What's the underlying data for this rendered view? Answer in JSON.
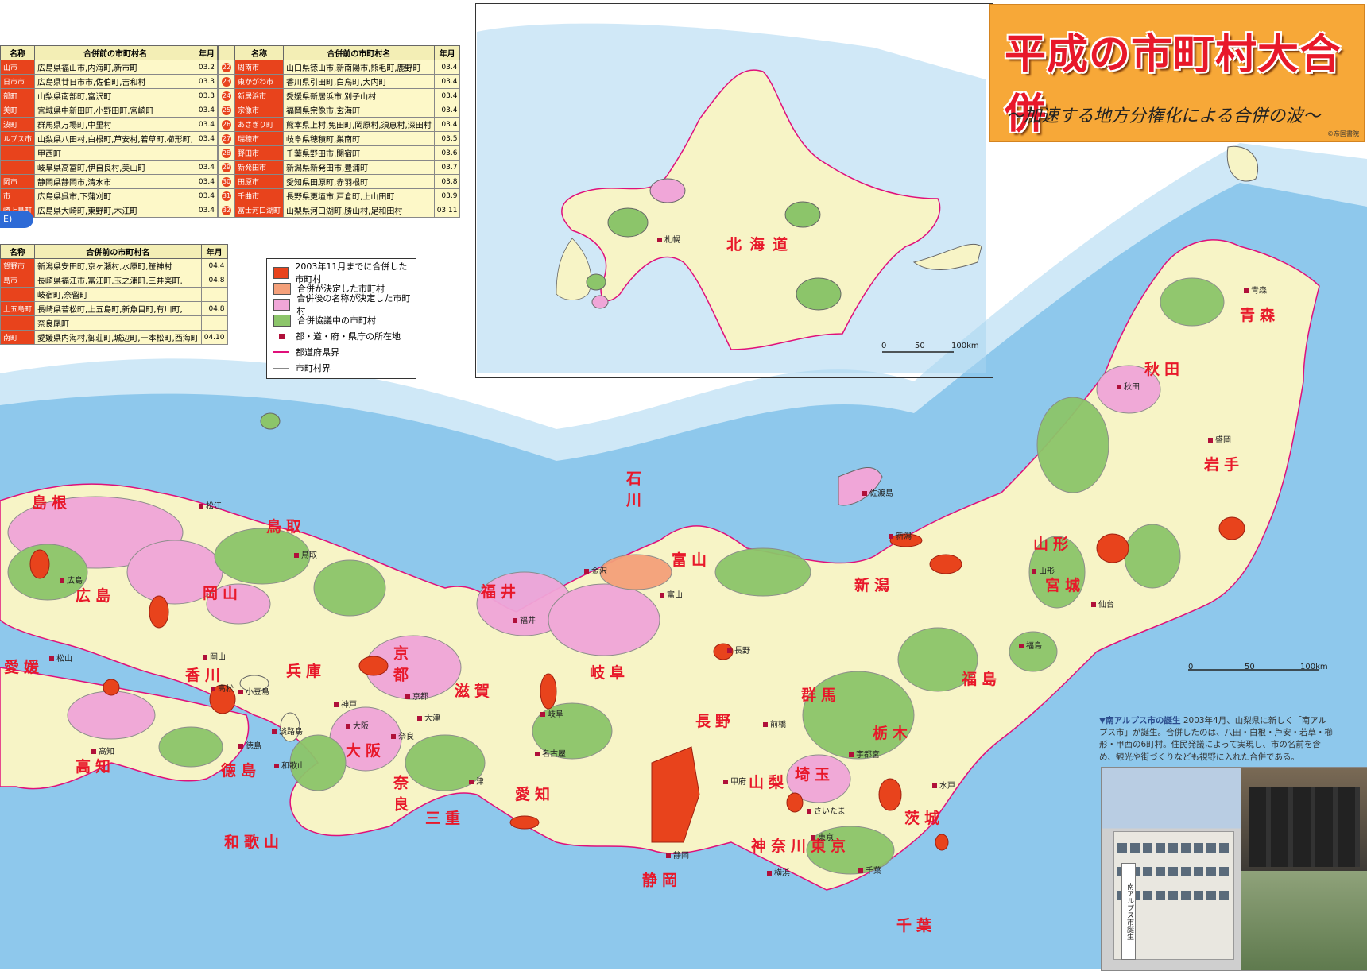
{
  "title": {
    "main": "平成の市町村大合併",
    "subtitle": "〜加速する地方分権化による合併の波〜",
    "publisher": "©帝国書院"
  },
  "table1": {
    "headers": [
      "名称",
      "合併前の市町村名",
      "年月"
    ],
    "left_rows": [
      {
        "name": "山市",
        "before": "広島県福山市,内海町,新市町",
        "ym": "03.2"
      },
      {
        "name": "日市市",
        "before": "広島県廿日市市,佐伯町,吉和村",
        "ym": "03.3"
      },
      {
        "name": "部町",
        "before": "山梨県南部町,富沢町",
        "ym": "03.3"
      },
      {
        "name": "美町",
        "before": "宮城県中新田町,小野田町,宮崎町",
        "ym": "03.4"
      },
      {
        "name": "波町",
        "before": "群馬県万場町,中里村",
        "ym": "03.4"
      },
      {
        "name": "ルプス市",
        "before": "山梨県八田村,白根町,芦安村,若草町,櫛形町,",
        "ym": "03.4"
      },
      {
        "name": "",
        "before": "甲西町",
        "ym": ""
      },
      {
        "name": "",
        "before": "岐阜県高富町,伊自良村,美山町",
        "ym": "03.4"
      },
      {
        "name": "岡市",
        "before": "静岡県静岡市,清水市",
        "ym": "03.4"
      },
      {
        "name": "市",
        "before": "広島県呉市,下蒲刈町",
        "ym": "03.4"
      },
      {
        "name": "崎上島町",
        "before": "広島県大崎町,東野町,木江町",
        "ym": "03.4"
      }
    ],
    "right_rows": [
      {
        "num": "22",
        "name": "周南市",
        "before": "山口県徳山市,新南陽市,熊毛町,鹿野町",
        "ym": "03.4"
      },
      {
        "num": "23",
        "name": "東かがわ市",
        "before": "香川県引田町,白鳥町,大内町",
        "ym": "03.4"
      },
      {
        "num": "24",
        "name": "新居浜市",
        "before": "愛媛県新居浜市,別子山村",
        "ym": "03.4"
      },
      {
        "num": "25",
        "name": "宗像市",
        "before": "福岡県宗像市,玄海町",
        "ym": "03.4"
      },
      {
        "num": "26",
        "name": "あさぎり町",
        "before": "熊本県上村,免田町,岡原村,須恵村,深田村",
        "ym": "03.4"
      },
      {
        "num": "27",
        "name": "瑞穂市",
        "before": "岐阜県穂積町,巣南町",
        "ym": "03.5"
      },
      {
        "num": "28",
        "name": "野田市",
        "before": "千葉県野田市,関宿町",
        "ym": "03.6"
      },
      {
        "num": "29",
        "name": "新発田市",
        "before": "新潟県新発田市,豊浦町",
        "ym": "03.7"
      },
      {
        "num": "30",
        "name": "田原市",
        "before": "愛知県田原町,赤羽根町",
        "ym": "03.8"
      },
      {
        "num": "31",
        "name": "千曲市",
        "before": "長野県更埴市,戸倉町,上山田町",
        "ym": "03.9"
      },
      {
        "num": "32",
        "name": "富士河口湖町",
        "before": "山梨県河口湖町,勝山村,足和田村",
        "ym": "03.11"
      }
    ]
  },
  "table2": {
    "tab_label": "E)",
    "headers": [
      "名称",
      "合併前の市町村名",
      "年月"
    ],
    "rows": [
      {
        "name": "賀野市",
        "before": "新潟県安田町,京ヶ瀬村,水原町,笹神村",
        "ym": "04.4"
      },
      {
        "name": "島市",
        "before": "長崎県福江市,富江町,玉之浦町,三井楽町,",
        "ym": "04.8"
      },
      {
        "name": "",
        "before": "岐宿町,奈留町",
        "ym": ""
      },
      {
        "name": "上五島町",
        "before": "長崎県若松町,上五島町,新魚目町,有川町,",
        "ym": "04.8"
      },
      {
        "name": "",
        "before": "奈良尾町",
        "ym": ""
      },
      {
        "name": "南町",
        "before": "愛媛県内海村,御荘町,城辺町,一本松町,西海町",
        "ym": "04.10"
      }
    ]
  },
  "legend": {
    "items": [
      {
        "label": "2003年11月までに合併した市町村",
        "color": "#e8431c"
      },
      {
        "label": "合併が決定した市町村",
        "color": "#f4a07a"
      },
      {
        "label": "合併後の名称が決定した市町村",
        "color": "#f0a6d8"
      },
      {
        "label": "合併協議中の市町村",
        "color": "#8cc56a"
      },
      {
        "label": "都・道・府・県庁の所在地",
        "color": "#b0103a"
      },
      {
        "label": "都道府県界",
        "color": "#e0107a"
      },
      {
        "label": "市町村界",
        "color": "#888888"
      }
    ]
  },
  "hokkaido": {
    "label": "北海道",
    "city": "札幌",
    "scale": [
      "0",
      "50",
      "100km"
    ]
  },
  "main_scale": [
    "0",
    "50",
    "100km"
  ],
  "prefectures": [
    "島根",
    "鳥取",
    "広島",
    "岡山",
    "愛媛",
    "香川",
    "高知",
    "徳島",
    "兵庫",
    "京都",
    "大阪",
    "奈良",
    "和歌山",
    "三重",
    "滋賀",
    "福井",
    "石川",
    "富山",
    "岐阜",
    "愛知",
    "静岡",
    "長野",
    "山梨",
    "神奈川",
    "東京",
    "千葉",
    "埼玉",
    "群馬",
    "栃木",
    "茨城",
    "新潟",
    "山形",
    "福島",
    "宮城",
    "秋田",
    "岩手",
    "青森"
  ],
  "cities": [
    "松江",
    "鳥取",
    "広島",
    "岡山",
    "松山",
    "高松",
    "小豆島",
    "神戸",
    "大阪",
    "京都",
    "大津",
    "奈良",
    "津",
    "和歌山",
    "徳島",
    "高知",
    "福井",
    "金沢",
    "富山",
    "岐阜",
    "名古屋",
    "甲府",
    "静岡",
    "長野",
    "前橋",
    "宇都宮",
    "水戸",
    "さいたま",
    "東京",
    "横浜",
    "千葉",
    "新潟",
    "佐渡島",
    "山形",
    "福島",
    "仙台",
    "盛岡",
    "秋田",
    "青森",
    "淡路島"
  ],
  "caption": {
    "heading": "▼南アルプス市の誕生",
    "text": "2003年4月、山梨県に新しく「南アルプス市」が誕生。合併したのは、八田・白根・芦安・若草・櫛形・甲西の6町村。住民発議によって実現し、市の名前を含め、観光や街づくりなども視野に入れた合併である。"
  },
  "photo": {
    "sign": "南アルプス市誕生"
  }
}
